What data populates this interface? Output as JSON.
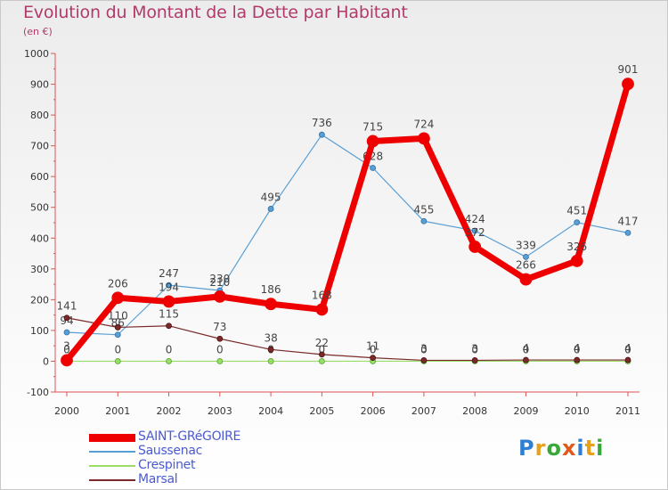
{
  "title": "Evolution du Montant de la Dette par Habitant",
  "subtitle": "(en €)",
  "logo": [
    "P",
    "r",
    "o",
    "x",
    "i",
    "t",
    "i"
  ],
  "logo_colors": [
    "#2e7fd1",
    "#e8a21a",
    "#3aa838",
    "#e05a1b",
    "#2e7fd1",
    "#e8a21a",
    "#3aa838"
  ],
  "chart_data": {
    "type": "line",
    "title": "Evolution du Montant de la Dette par Habitant",
    "ylabel": "(en €)",
    "xlabel": "",
    "ylim": [
      -100,
      1000
    ],
    "yticks": [
      "-100",
      "0",
      "100",
      "200",
      "300",
      "400",
      "500",
      "600",
      "700",
      "800",
      "900",
      "1000"
    ],
    "ytick_values": [
      -100,
      0,
      100,
      200,
      300,
      400,
      500,
      600,
      700,
      800,
      900,
      1000
    ],
    "categories": [
      "2000",
      "2001",
      "2002",
      "2003",
      "2004",
      "2005",
      "2006",
      "2007",
      "2008",
      "2009",
      "2010",
      "2011"
    ],
    "series": [
      {
        "name": "Saussenac",
        "color": "#5a9fd4",
        "values": [
          94,
          86,
          247,
          230,
          495,
          736,
          628,
          455,
          424,
          339,
          451,
          417
        ],
        "labels": [
          "94",
          "86",
          "247",
          "230",
          "495",
          "736",
          "628",
          "455",
          "424",
          "339",
          "451",
          "417"
        ]
      },
      {
        "name": "Crespinet",
        "color": "#99dd66",
        "values": [
          0,
          0,
          0,
          0,
          0,
          0,
          0,
          0,
          0,
          0,
          0,
          0
        ],
        "labels": [
          "0",
          "0",
          "0",
          "0",
          "0",
          "0",
          "0",
          "0",
          "0",
          "0",
          "0",
          "0"
        ]
      },
      {
        "name": "Marsal",
        "color": "#7a2a2a",
        "values": [
          141,
          110,
          115,
          73,
          38,
          22,
          11,
          3,
          3,
          4,
          4,
          4
        ],
        "labels": [
          "141",
          "110",
          "115",
          "73",
          "38",
          "22",
          "11",
          "3",
          "3",
          "4",
          "4",
          "4"
        ]
      },
      {
        "name": "SAINT-GRéGOIRE",
        "color": "#ee0000",
        "values": [
          3,
          206,
          194,
          210,
          186,
          168,
          715,
          724,
          372,
          266,
          326,
          901
        ],
        "labels": [
          "3",
          "206",
          "194",
          "210",
          "186",
          "168",
          "715",
          "724",
          "372",
          "266",
          "326",
          "901"
        ]
      }
    ],
    "legend": [
      "SAINT-GRéGOIRE",
      "Saussenac",
      "Crespinet",
      "Marsal"
    ],
    "legend_colors": [
      "#ee0000",
      "#5a9fd4",
      "#99dd66",
      "#7a2a2a"
    ],
    "grid": false,
    "legend_position": "bottom-left"
  }
}
